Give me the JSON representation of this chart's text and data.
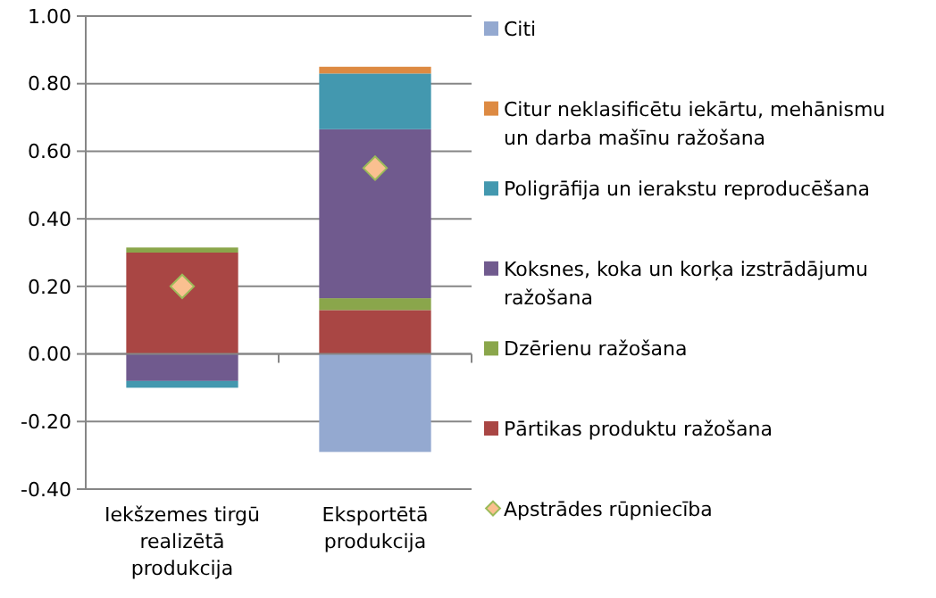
{
  "chart_data": {
    "type": "bar",
    "stacked": true,
    "categories": [
      "Iekšzemes tirgū realizētā produkcija",
      "Eksportētā produkcija"
    ],
    "series": [
      {
        "name": "Pārtikas produktu ražošana",
        "color": "#a94644",
        "values": [
          0.3,
          0.13
        ]
      },
      {
        "name": "Dzērienu ražošana",
        "color": "#8aa64b",
        "values": [
          0.015,
          0.035
        ]
      },
      {
        "name": "Koksnes, koka un korķa izstrādājumu ražošana",
        "color": "#705a8e",
        "values": [
          -0.08,
          0.5
        ]
      },
      {
        "name": "Poligrāfija un ierakstu reproducēšana",
        "color": "#4398af",
        "values": [
          -0.02,
          0.165
        ]
      },
      {
        "name": "Citur neklasificētu iekārtu, mehānismu un darba mašīnu ražošana",
        "color": "#dd8a42",
        "values": [
          0,
          0.02
        ]
      },
      {
        "name": "Citi",
        "color": "#94a9d0",
        "values": [
          0,
          -0.29
        ]
      },
      {
        "name": "Apstrādes rūpniecība",
        "type": "scatter",
        "marker": "diamond",
        "color": "#fac090",
        "x": [
          "Iekšzemes tirgū realizētā produkcija",
          "Eksportētā produkcija"
        ],
        "values": [
          0.2,
          0.55
        ]
      }
    ],
    "ylim": [
      -0.4,
      1.0
    ],
    "yticks": [
      {
        "value": -0.4,
        "label": "-0.40"
      },
      {
        "value": -0.2,
        "label": "-0.20"
      },
      {
        "value": 0,
        "label": "0.00"
      },
      {
        "value": 0.2,
        "label": "0.20"
      },
      {
        "value": 0.4,
        "label": "0.40"
      },
      {
        "value": 0.6,
        "label": "0.60"
      },
      {
        "value": 0.8,
        "label": "0.80"
      },
      {
        "value": 1.0,
        "label": "1.00"
      }
    ],
    "grid": "y",
    "legend": "right"
  }
}
